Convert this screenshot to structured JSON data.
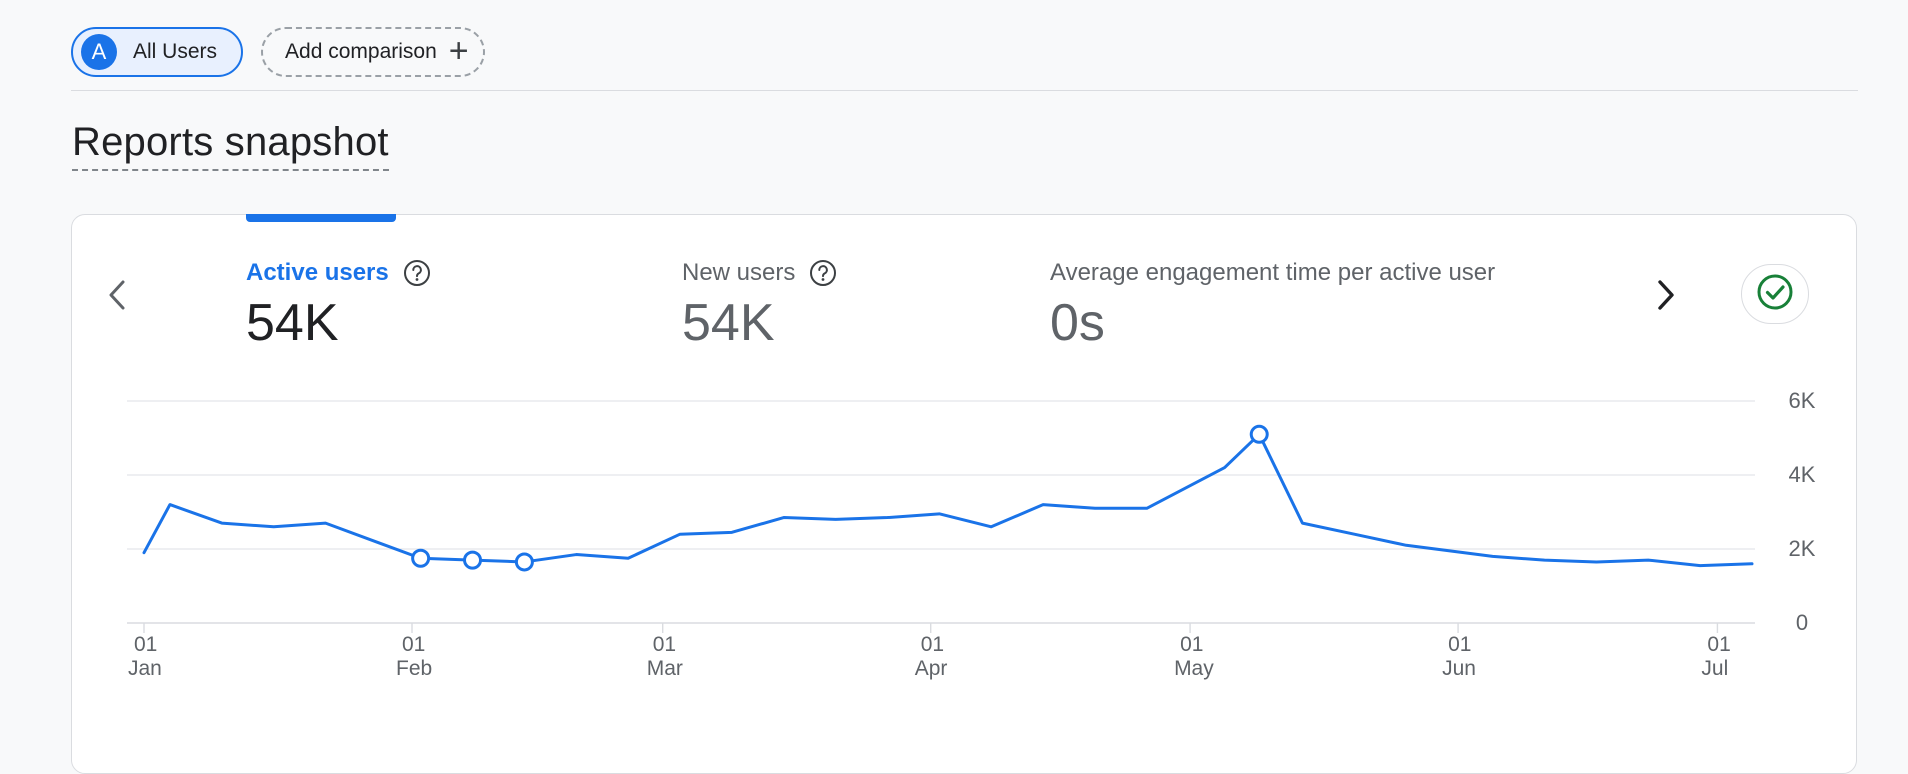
{
  "comparison_bar": {
    "segment_avatar_letter": "A",
    "segment_label": "All Users",
    "add_comparison_label": "Add comparison"
  },
  "page_title": "Reports snapshot",
  "metrics": [
    {
      "label": "Active users",
      "value": "54K",
      "selected": true
    },
    {
      "label": "New users",
      "value": "54K",
      "selected": false
    },
    {
      "label": "Average engagement time per active user",
      "value": "0s",
      "selected": false
    }
  ],
  "icons": {
    "prev": "chevron-left-icon",
    "next": "chevron-right-icon",
    "help": "help-circle-icon",
    "status": "check-circle-icon"
  },
  "colors": {
    "accent": "#1a73e8",
    "status_ok": "#188038"
  },
  "chart_data": {
    "type": "line",
    "series": [
      {
        "values": [
          [
            "2024-01-01",
            1900
          ],
          [
            "2024-01-04",
            3200
          ],
          [
            "2024-01-10",
            2700
          ],
          [
            "2024-01-16",
            2600
          ],
          [
            "2024-01-22",
            2700
          ],
          [
            "2024-02-02",
            1750
          ],
          [
            "2024-02-08",
            1700
          ],
          [
            "2024-02-14",
            1650
          ],
          [
            "2024-02-20",
            1850
          ],
          [
            "2024-02-26",
            1750
          ],
          [
            "2024-03-03",
            2400
          ],
          [
            "2024-03-09",
            2450
          ],
          [
            "2024-03-15",
            2850
          ],
          [
            "2024-03-21",
            2800
          ],
          [
            "2024-03-27",
            2850
          ],
          [
            "2024-04-02",
            2950
          ],
          [
            "2024-04-08",
            2600
          ],
          [
            "2024-04-14",
            3200
          ],
          [
            "2024-04-20",
            3100
          ],
          [
            "2024-04-26",
            3100
          ],
          [
            "2024-05-05",
            4200
          ],
          [
            "2024-05-09",
            5100
          ],
          [
            "2024-05-14",
            2700
          ],
          [
            "2024-05-20",
            2400
          ],
          [
            "2024-05-26",
            2100
          ],
          [
            "2024-06-05",
            1800
          ],
          [
            "2024-06-11",
            1700
          ],
          [
            "2024-06-17",
            1650
          ],
          [
            "2024-06-23",
            1700
          ],
          [
            "2024-06-29",
            1550
          ],
          [
            "2024-07-05",
            1600
          ]
        ],
        "markers": [
          "2024-02-02",
          "2024-02-08",
          "2024-02-14",
          "2024-05-09"
        ]
      }
    ],
    "x_ticks": [
      {
        "date": "2024-01-01",
        "day": "01",
        "month": "Jan"
      },
      {
        "date": "2024-02-01",
        "day": "01",
        "month": "Feb"
      },
      {
        "date": "2024-03-01",
        "day": "01",
        "month": "Mar"
      },
      {
        "date": "2024-04-01",
        "day": "01",
        "month": "Apr"
      },
      {
        "date": "2024-05-01",
        "day": "01",
        "month": "May"
      },
      {
        "date": "2024-06-01",
        "day": "01",
        "month": "Jun"
      },
      {
        "date": "2024-07-01",
        "day": "01",
        "month": "Jul"
      }
    ],
    "y_ticks": [
      {
        "value": 0,
        "label": "0"
      },
      {
        "value": 2000,
        "label": "2K"
      },
      {
        "value": 4000,
        "label": "4K"
      },
      {
        "value": 6000,
        "label": "6K"
      }
    ],
    "xlim": [
      "2024-01-01",
      "2024-07-05"
    ],
    "ylim": [
      0,
      6000
    ],
    "grid": true,
    "y_axis_side": "right",
    "line_color": "#1a73e8"
  }
}
